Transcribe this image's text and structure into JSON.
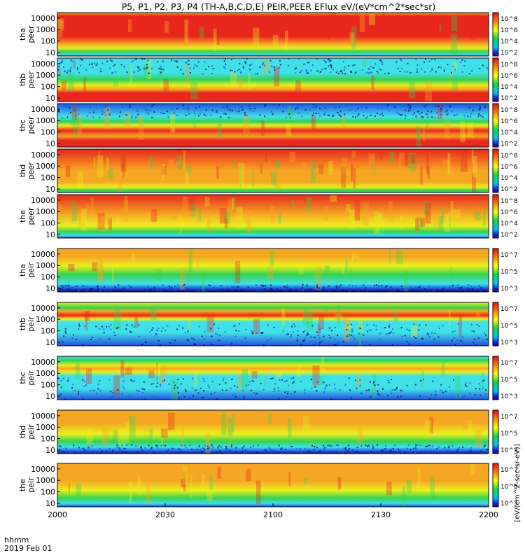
{
  "title": "P5, P1, P2, P3, P4 (TH-A,B,C,D,E) PEIR,PEER EFlux eV/(eV*cm^2*sec*sr)",
  "date_label": "2019 Feb 01",
  "time_unit_label": "hhmm",
  "colorbar_label": "[eV/(cm^2-sec-sr-eV)]",
  "colors": {
    "red": "#e8281e",
    "orange": "#f5a623",
    "yellow": "#e8f020",
    "green": "#34d050",
    "cyan": "#40e0e8",
    "blue": "#2050e0",
    "navy": "#101060",
    "black": "#000000"
  },
  "chart_data": {
    "type": "heatmap",
    "x_ticks": [
      "2000",
      "2030",
      "2100",
      "2130",
      "2200"
    ],
    "x_tick_values": [
      0,
      30,
      60,
      90,
      120
    ],
    "xlim": [
      0,
      120
    ],
    "y_scale": "log",
    "ylim": [
      5,
      30000
    ],
    "y_ticks": [
      "10000",
      "1000",
      "100",
      "10"
    ],
    "y_tick_values": [
      10000,
      1000,
      100,
      10
    ],
    "colorbar_ticks_electrons": [
      "10^8",
      "10^6",
      "10^4",
      "10^2"
    ],
    "colorbar_ticks_ions": [
      "10^7",
      "10^5",
      "10^3"
    ],
    "panels": [
      {
        "label1": "tha",
        "label2": "peer",
        "pattern": "peer_a"
      },
      {
        "label1": "thb",
        "label2": "peer",
        "pattern": "peer_b"
      },
      {
        "label1": "thc",
        "label2": "peer",
        "pattern": "peer_c"
      },
      {
        "label1": "thd",
        "label2": "peer",
        "pattern": "peer_d"
      },
      {
        "label1": "the",
        "label2": "peer",
        "pattern": "peer_e"
      },
      {
        "label1": "tha",
        "label2": "peir",
        "pattern": "peir_a"
      },
      {
        "label1": "thb",
        "label2": "peir",
        "pattern": "peir_b"
      },
      {
        "label1": "thc",
        "label2": "peir",
        "pattern": "peir_c"
      },
      {
        "label1": "thd",
        "label2": "peir",
        "pattern": "peir_d"
      },
      {
        "label1": "the",
        "label2": "peir",
        "pattern": "peir_e"
      }
    ]
  }
}
